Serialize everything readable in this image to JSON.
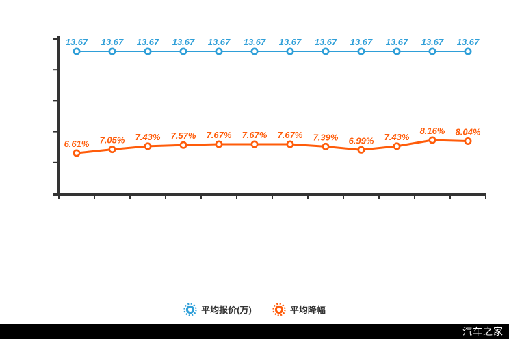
{
  "chart_data": {
    "type": "line",
    "x_count": 12,
    "x_labels_visible": false,
    "y_axis_labels_visible": false,
    "y_ticks": 5,
    "x_boundary_ticks": 13,
    "grid": false,
    "legend_position": "bottom",
    "series": [
      {
        "name": "平均报价(万)",
        "color": "#2F9FD8",
        "values": [
          13.67,
          13.67,
          13.67,
          13.67,
          13.67,
          13.67,
          13.67,
          13.67,
          13.67,
          13.67,
          13.67,
          13.67
        ],
        "labels": [
          "13.67",
          "13.67",
          "13.67",
          "13.67",
          "13.67",
          "13.67",
          "13.67",
          "13.67",
          "13.67",
          "13.67",
          "13.67",
          "13.67"
        ]
      },
      {
        "name": "平均降幅",
        "color": "#FF5C0A",
        "values": [
          6.61,
          7.05,
          7.43,
          7.57,
          7.67,
          7.67,
          7.67,
          7.39,
          6.99,
          7.43,
          8.16,
          8.04
        ],
        "labels": [
          "6.61%",
          "7.05%",
          "7.43%",
          "7.57%",
          "7.67%",
          "7.67%",
          "7.67%",
          "7.39%",
          "6.99%",
          "7.43%",
          "8.16%",
          "8.04%"
        ]
      }
    ]
  },
  "legend": {
    "items": [
      {
        "label": "平均报价(万)",
        "color": "#2F9FD8"
      },
      {
        "label": "平均降幅",
        "color": "#FF5C0A"
      }
    ]
  },
  "watermark": {
    "text": "汽车之家",
    "bg": "#000000",
    "fg": "#FFFFFF"
  },
  "colors": {
    "axis": "#333333",
    "background": "#FFFFFF"
  }
}
